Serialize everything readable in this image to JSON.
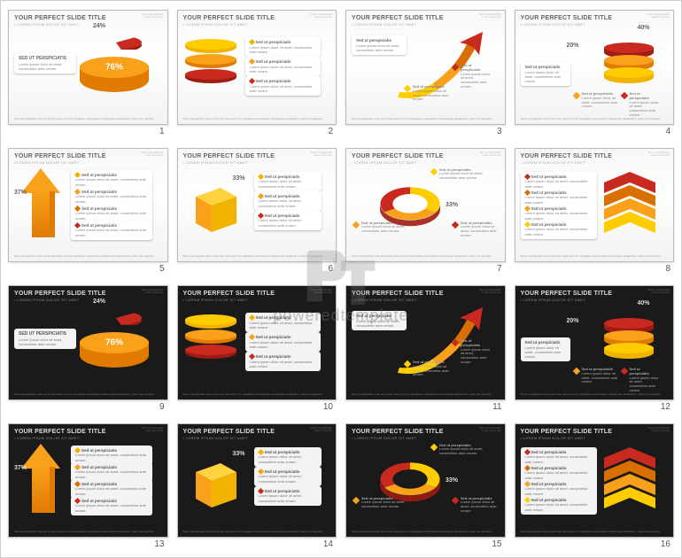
{
  "watermark": "poweredtemplate",
  "common": {
    "title": "YOUR PERFECT SLIDE TITLE",
    "subtitle": "• LOREM IPSUM DOLOR SIT AMET",
    "sed": "SED UT PERSPICIATIS",
    "pill_title": "Sed ut perspiciatis",
    "lorem_short": "Lorem ipsum dolor sit amet, consectetur ante ornare.",
    "lorem_line": "Lorem ipsum dolor sit amet, consectetur adipiscing elit.",
    "footer": "Sed ut perspiciatis unde omnis iste natus error sit voluptatem accusantium doloremque laudantium, totam rem aperiam.",
    "cornermark": "Sed ut perspiciatis\nunde omnis iste"
  },
  "colors": {
    "orange": "#f9a11b",
    "orange_dark": "#e07b00",
    "yellow": "#ffd23f",
    "yellow_dark": "#f0b400",
    "red": "#c92a1f",
    "red_dark": "#9e1c12",
    "amber": "#ff8c00",
    "amber_dark": "#d86f00",
    "gold": "#ffcc00"
  },
  "slides": [
    {
      "n": 1,
      "theme": "light",
      "type": "pie3d",
      "pcts": [
        "24%",
        "76%"
      ]
    },
    {
      "n": 2,
      "theme": "light",
      "type": "disks3"
    },
    {
      "n": 3,
      "theme": "light",
      "type": "curvearrow"
    },
    {
      "n": 4,
      "theme": "light",
      "type": "stack",
      "pcts": [
        "20%",
        "40%"
      ]
    },
    {
      "n": 5,
      "theme": "light",
      "type": "arrowup",
      "pcts": [
        "37%"
      ]
    },
    {
      "n": 6,
      "theme": "light",
      "type": "cube",
      "pcts": [
        "33%"
      ]
    },
    {
      "n": 7,
      "theme": "light",
      "type": "donut",
      "pcts": [
        "33%"
      ]
    },
    {
      "n": 8,
      "theme": "light",
      "type": "chevrons"
    },
    {
      "n": 9,
      "theme": "dark",
      "type": "pie3d",
      "pcts": [
        "24%",
        "76%"
      ]
    },
    {
      "n": 10,
      "theme": "dark",
      "type": "disks3"
    },
    {
      "n": 11,
      "theme": "dark",
      "type": "curvearrow"
    },
    {
      "n": 12,
      "theme": "dark",
      "type": "stack",
      "pcts": [
        "20%",
        "40%"
      ]
    },
    {
      "n": 13,
      "theme": "dark",
      "type": "arrowup",
      "pcts": [
        "37%"
      ]
    },
    {
      "n": 14,
      "theme": "dark",
      "type": "cube",
      "pcts": [
        "33%"
      ]
    },
    {
      "n": 15,
      "theme": "dark",
      "type": "donut",
      "pcts": [
        "33%"
      ]
    },
    {
      "n": 16,
      "theme": "dark",
      "type": "chevrons"
    }
  ]
}
